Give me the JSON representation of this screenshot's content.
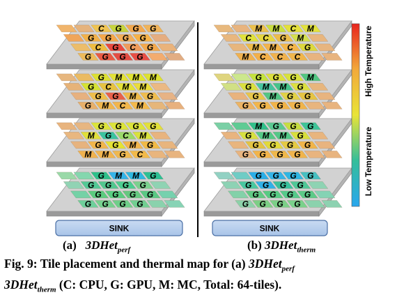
{
  "diagram": {
    "panels": [
      {
        "id": "a",
        "layers": [
          [
            "",
            "",
            "C",
            "G",
            "G",
            "G",
            "",
            "G",
            "G",
            "G",
            "G",
            "",
            "",
            "C",
            "G",
            "C",
            "G",
            "",
            "G",
            "G",
            "G",
            "G",
            "",
            ""
          ],
          [
            "",
            "",
            "G",
            "M",
            "M",
            "M",
            "",
            "G",
            "C",
            "M",
            "M",
            "",
            "",
            "G",
            "G",
            "M",
            "G",
            "",
            "G",
            "M",
            "C",
            "M",
            "",
            ""
          ],
          [
            "",
            "",
            "G",
            "G",
            "G",
            "G",
            "",
            "M",
            "G",
            "C",
            "M",
            "",
            "",
            "G",
            "G",
            "M",
            "G",
            "",
            "M",
            "M",
            "G",
            "C",
            "",
            ""
          ],
          [
            "",
            "",
            "G",
            "M",
            "M",
            "G",
            "",
            "G",
            "G",
            "G",
            "G",
            "",
            "",
            "G",
            "G",
            "G",
            "G",
            "",
            "G",
            "G",
            "G",
            "G",
            "",
            ""
          ]
        ],
        "colors": [
          [
            "#f1b56c",
            "#e5b37d",
            "#efc452",
            "#c7d43b",
            "#f2a84f",
            "#f0b45a",
            "#f0a55a",
            "#f2b149",
            "#f5a749",
            "#f2ad58",
            "#f6b247",
            "#e5ad80",
            "#ecbd6a",
            "#efbd40",
            "#e9483f",
            "#ef9b5b",
            "#f3a94d",
            "#eab37b",
            "#eebb5a",
            "#e95a44",
            "#e44c43",
            "#e74d45",
            "#f3ac6f",
            "#e2ad83"
          ],
          [
            "#e7b77f",
            "#ebbb62",
            "#dce033",
            "#e3e236",
            "#e1e430",
            "#dde232",
            "#e6b379",
            "#d5e233",
            "#e7c341",
            "#e5e236",
            "#eadd3a",
            "#ebb983",
            "#e7b17f",
            "#efbf4b",
            "#e9604a",
            "#efba4a",
            "#efbd4f",
            "#e7b385",
            "#e8b06a",
            "#f1b64c",
            "#f2b64b",
            "#f4b94b",
            "#e6b67a",
            "#e8b17e"
          ],
          [
            "#e8b47e",
            "#e7b681",
            "#dce43c",
            "#dce43a",
            "#dce43a",
            "#e2e03a",
            "#e8b780",
            "#e0e03a",
            "#3ac3a0",
            "#9bd96a",
            "#d9e23c",
            "#e8b47f",
            "#e6b37f",
            "#f2b64b",
            "#e4e334",
            "#f2b64d",
            "#f1ba46",
            "#e8b57e",
            "#f0b24f",
            "#f1b44e",
            "#efb84f",
            "#f2ba4a",
            "#e8b57e",
            "#e8b47f"
          ],
          [
            "#9ad9a8",
            "#84d7ae",
            "#2ec08b",
            "#34b4e9",
            "#2eb8e1",
            "#2cc094",
            "#91d3b4",
            "#53c996",
            "#52c78f",
            "#4bcd90",
            "#7bd18f",
            "#8fd3b3",
            "#74d1a6",
            "#5ccb7f",
            "#58cc80",
            "#65c880",
            "#59c884",
            "#76d1ae",
            "#6ed09b",
            "#75d08e",
            "#6fcf89",
            "#71cf91",
            "#8ad2ad",
            "#87d3b5"
          ]
        ]
      },
      {
        "id": "b",
        "layers": [
          [
            "",
            "",
            "M",
            "M",
            "C",
            "M",
            "",
            "C",
            "C",
            "G",
            "M",
            "",
            "",
            "M",
            "M",
            "C",
            "G",
            "",
            "M",
            "C",
            "C",
            "C",
            "",
            ""
          ],
          [
            "",
            "",
            "G",
            "G",
            "G",
            "M",
            "",
            "G",
            "M",
            "M",
            "G",
            "",
            "",
            "G",
            "M",
            "G",
            "G",
            "",
            "G",
            "G",
            "G",
            "G",
            "",
            ""
          ],
          [
            "",
            "",
            "M",
            "G",
            "G",
            "G",
            "",
            "G",
            "M",
            "M",
            "G",
            "",
            "",
            "G",
            "G",
            "G",
            "G",
            "",
            "G",
            "G",
            "G",
            "G",
            "",
            ""
          ],
          [
            "",
            "",
            "G",
            "G",
            "G",
            "G",
            "",
            "G",
            "G",
            "G",
            "G",
            "",
            "",
            "G",
            "G",
            "G",
            "G",
            "",
            "G",
            "G",
            "G",
            "G",
            "",
            ""
          ]
        ],
        "colors": [
          [
            "#e8b97e",
            "#e8b47e",
            "#ecc14b",
            "#c9de3f",
            "#e3e03a",
            "#e2e23c",
            "#e8b77e",
            "#e0e23a",
            "#e6d63f",
            "#ecbd49",
            "#d3e04c",
            "#e8b67e",
            "#e7b67d",
            "#efbb48",
            "#f2b44b",
            "#f3b64a",
            "#ddd93c",
            "#e7b57f",
            "#f0b14f",
            "#f3b048",
            "#f1b24d",
            "#f1b64b",
            "#e8b47f",
            "#e8b47f"
          ],
          [
            "#dfd57f",
            "#cce78d",
            "#c4e33d",
            "#dcdf3e",
            "#d8e23d",
            "#52c782",
            "#d1e085",
            "#dae03d",
            "#46c49e",
            "#44c38b",
            "#dce03f",
            "#e7b67d",
            "#e8b37e",
            "#e8c64b",
            "#52c684",
            "#e2d246",
            "#e6c443",
            "#e8b47f",
            "#ecb464",
            "#f2b64b",
            "#f2b448",
            "#f0b44c",
            "#e8b57e",
            "#e8b47f"
          ],
          [
            "#7bd0a6",
            "#5fcb94",
            "#31c08b",
            "#5ac992",
            "#c6de42",
            "#3ec498",
            "#e8b47f",
            "#d8e03f",
            "#54c986",
            "#52c887",
            "#d8df3c",
            "#e8b57e",
            "#e8b57e",
            "#e3c443",
            "#e2da3a",
            "#e5ca44",
            "#f1b54a",
            "#e8b47f",
            "#e8b47f",
            "#f2b44a",
            "#efb84b",
            "#f0b44c",
            "#e8b47f",
            "#e8b47f"
          ],
          [
            "#92d1c3",
            "#6fccc5",
            "#2aaee8",
            "#35b4e7",
            "#2fb6e3",
            "#47c0c2",
            "#8dd2b4",
            "#49c8a1",
            "#2fb0e7",
            "#39c19d",
            "#4fc897",
            "#8ed3b3",
            "#83d1a9",
            "#60c984",
            "#57cb83",
            "#55ca8a",
            "#5cca88",
            "#84d3b4",
            "#8cd1a9",
            "#7ccf85",
            "#7bd087",
            "#7ad18b",
            "#8bd2ad",
            "#8dd2b1"
          ]
        ]
      }
    ],
    "sink_label": "SINK",
    "legend": {
      "high_label": "High Temperature",
      "low_label": "Low Temperature",
      "gradient": [
        "#e8251e",
        "#f2a93a",
        "#e9e436",
        "#34be9a",
        "#2aa7ee"
      ]
    }
  },
  "captions": {
    "panel_a_prefix": "(a)",
    "panel_a_name": "3DHet",
    "panel_a_sub": "perf",
    "panel_b_prefix": "(b)",
    "panel_b_name": "3DHet",
    "panel_b_sub": "therm",
    "figure_lead": "Fig. 9: Tile placement and thermal map for (a) ",
    "figure_name_a": "3DHet",
    "figure_sub_a": "perf",
    "figure_name_b": "3DHet",
    "figure_sub_b": "therm",
    "figure_tail": " (C: CPU, G: GPU, M: MC, Total: 64-tiles)."
  }
}
